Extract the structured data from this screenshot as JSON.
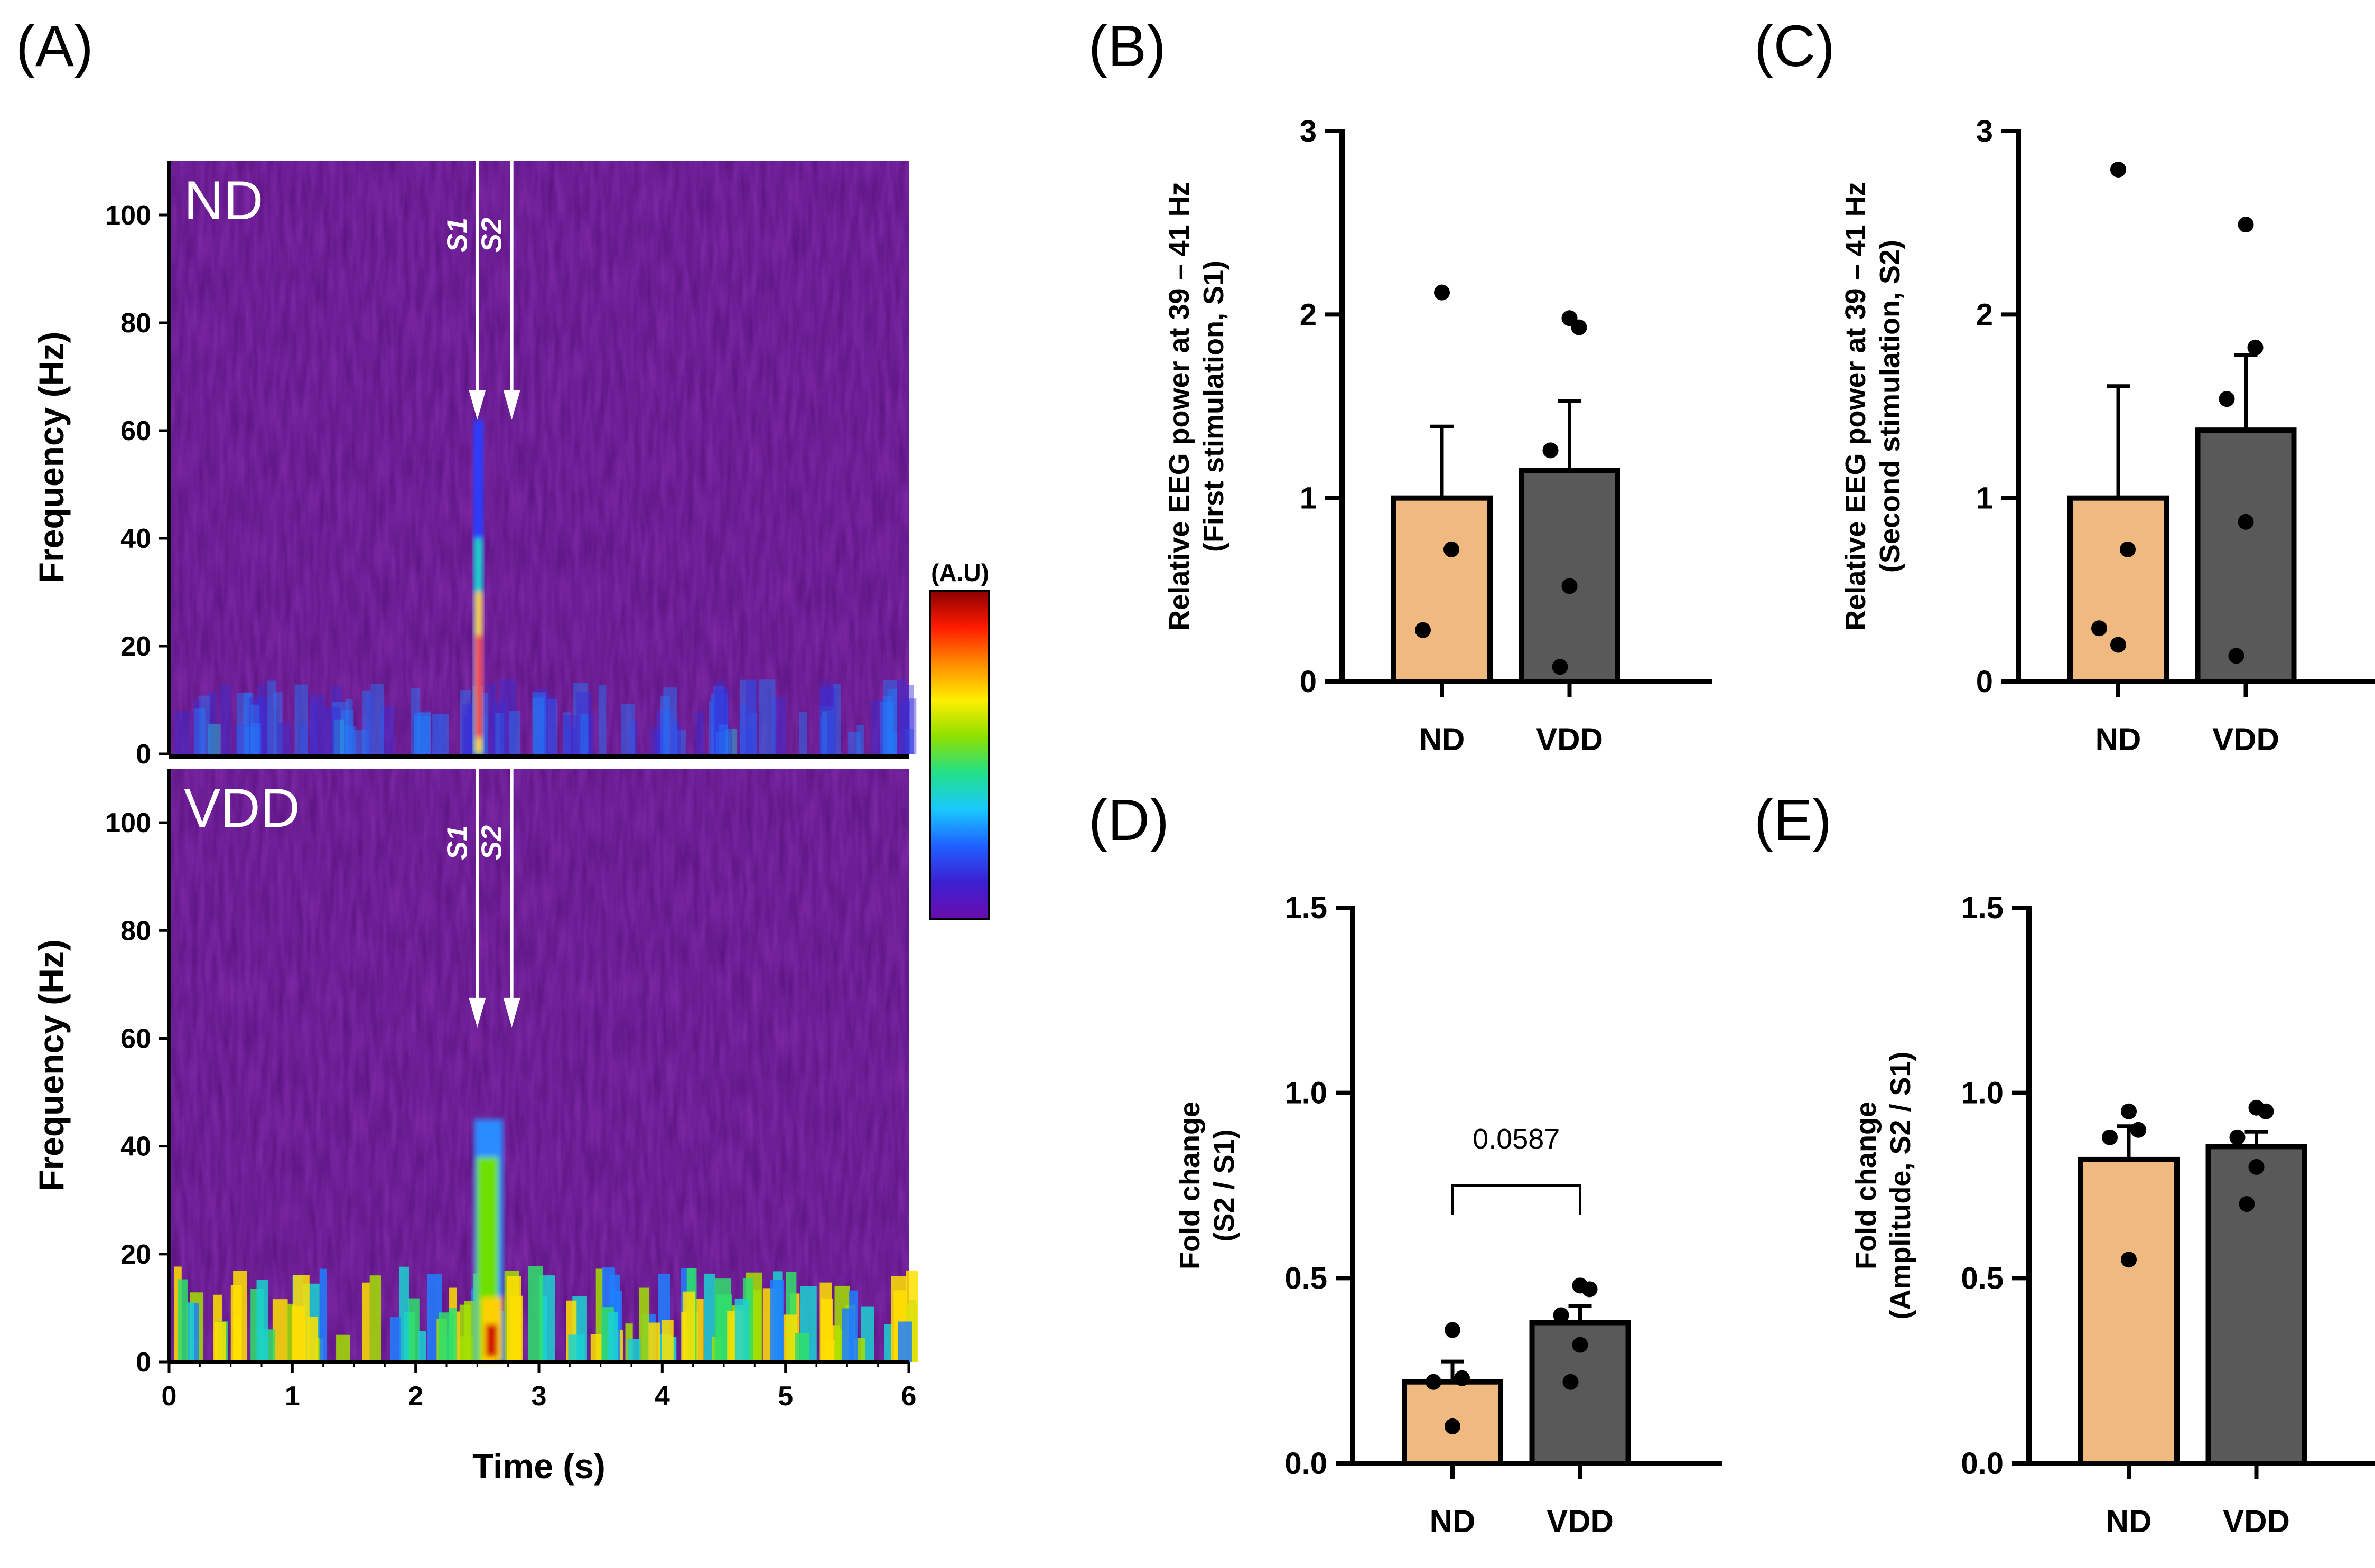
{
  "panel_labels": {
    "A": "(A)",
    "B": "(B)",
    "C": "(C)",
    "D": "(D)",
    "E": "(E)"
  },
  "colors": {
    "ND": "#f0b97f",
    "VDD": "#595959",
    "axis": "#000000",
    "arrow": "#ffffff",
    "spectrogram_background": "#5a1280"
  },
  "colorbar": {
    "label": "(A.U)",
    "stops": [
      "#6a0dad",
      "#3d1fd1",
      "#1f5fff",
      "#19c8ff",
      "#22e08a",
      "#8ee000",
      "#ffee00",
      "#ff8c00",
      "#ff1a00",
      "#8b0000"
    ]
  },
  "chart_data": [
    {
      "id": "A-ND",
      "type": "heatmap",
      "group_label": "ND",
      "xlabel": "",
      "ylabel": "Frequency (Hz)",
      "xlim": [
        0,
        6
      ],
      "ylim": [
        0,
        110
      ],
      "yticks": [
        0,
        20,
        40,
        60,
        80,
        100
      ],
      "ytick_labels": [
        "0",
        "20",
        "40",
        "60",
        "80",
        "100"
      ],
      "markers": [
        {
          "label": "S1",
          "x": 2.5
        },
        {
          "label": "S2",
          "x": 2.78
        }
      ]
    },
    {
      "id": "A-VDD",
      "type": "heatmap",
      "group_label": "VDD",
      "xlabel": "Time (s)",
      "ylabel": "Frequency (Hz)",
      "xlim": [
        0,
        6
      ],
      "ylim": [
        0,
        110
      ],
      "xticks": [
        0,
        1,
        2,
        3,
        4,
        5,
        6
      ],
      "xtick_labels": [
        "0",
        "1",
        "2",
        "3",
        "4",
        "5",
        "6"
      ],
      "yticks": [
        0,
        20,
        40,
        60,
        80,
        100
      ],
      "ytick_labels": [
        "0",
        "20",
        "40",
        "60",
        "80",
        "100"
      ],
      "markers": [
        {
          "label": "S1",
          "x": 2.5
        },
        {
          "label": "S2",
          "x": 2.78
        }
      ]
    },
    {
      "id": "B",
      "type": "bar",
      "ylabel_line1": "Relative EEG  power at 39 – 41 Hz",
      "ylabel_line2": "(First stimulation, S1)",
      "categories": [
        "ND",
        "VDD"
      ],
      "values": [
        1.0,
        1.15
      ],
      "errors": [
        0.39,
        0.38
      ],
      "points": [
        [
          2.12,
          0.72,
          0.28
        ],
        [
          1.98,
          1.93,
          1.26,
          0.52,
          0.08
        ]
      ],
      "ylim": [
        0,
        3
      ],
      "yticks": [
        0,
        1,
        2,
        3
      ],
      "ytick_labels": [
        "0",
        "1",
        "2",
        "3"
      ]
    },
    {
      "id": "C",
      "type": "bar",
      "ylabel_line1": "Relative EEG  power at 39 – 41 Hz",
      "ylabel_line2": "(Second stimulation, S2)",
      "categories": [
        "ND",
        "VDD"
      ],
      "values": [
        1.0,
        1.37
      ],
      "errors": [
        0.61,
        0.41
      ],
      "points": [
        [
          2.79,
          0.72,
          0.29,
          0.2
        ],
        [
          2.49,
          1.82,
          1.54,
          0.87,
          0.14
        ]
      ],
      "ylim": [
        0,
        3
      ],
      "yticks": [
        0,
        1,
        2,
        3
      ],
      "ytick_labels": [
        "0",
        "1",
        "2",
        "3"
      ]
    },
    {
      "id": "D",
      "type": "bar",
      "ylabel_line1": "Fold change",
      "ylabel_line2": "(S2 / S1)",
      "categories": [
        "ND",
        "VDD"
      ],
      "values": [
        0.22,
        0.38
      ],
      "errors": [
        0.055,
        0.045
      ],
      "points": [
        [
          0.36,
          0.23,
          0.22,
          0.1
        ],
        [
          0.48,
          0.47,
          0.4,
          0.32,
          0.22
        ]
      ],
      "ylim": [
        0,
        1.5
      ],
      "yticks": [
        0,
        0.5,
        1.0,
        1.5
      ],
      "ytick_labels": [
        "0.0",
        "0.5",
        "1.0",
        "1.5"
      ],
      "comparison": {
        "label": "0.0587",
        "y": 0.75
      }
    },
    {
      "id": "E",
      "type": "bar",
      "ylabel_line1": "Fold change",
      "ylabel_line2": "(Amplitude, S2 / S1)",
      "categories": [
        "ND",
        "VDD"
      ],
      "values": [
        0.82,
        0.855
      ],
      "errors": [
        0.09,
        0.04
      ],
      "points": [
        [
          0.95,
          0.9,
          0.88,
          0.55
        ],
        [
          0.96,
          0.95,
          0.88,
          0.8,
          0.7
        ]
      ],
      "ylim": [
        0,
        1.5
      ],
      "yticks": [
        0,
        0.5,
        1.0,
        1.5
      ],
      "ytick_labels": [
        "0.0",
        "0.5",
        "1.0",
        "1.5"
      ]
    }
  ]
}
